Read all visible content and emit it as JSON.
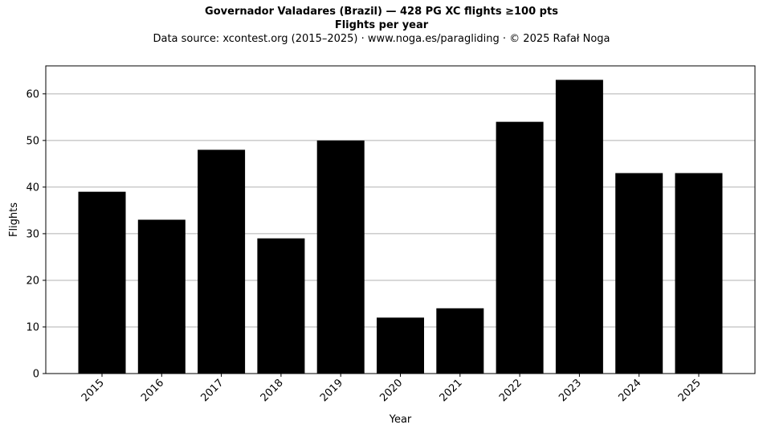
{
  "header": {
    "title": "Governador Valadares (Brazil)  —  428 PG XC flights ≥100 pts",
    "subtitle": "Flights per year",
    "source": "Data source: xcontest.org (2015–2025)  ·  www.noga.es/paragliding  ·  © 2025 Rafał Noga"
  },
  "chart_data": {
    "type": "bar",
    "title": "Governador Valadares (Brazil)  —  428 PG XC flights ≥100 pts",
    "subtitle": "Flights per year",
    "xlabel": "Year",
    "ylabel": "Flights",
    "categories": [
      "2015",
      "2016",
      "2017",
      "2018",
      "2019",
      "2020",
      "2021",
      "2022",
      "2023",
      "2024",
      "2025"
    ],
    "values": [
      39,
      33,
      48,
      29,
      50,
      12,
      14,
      54,
      63,
      43,
      43
    ],
    "ylim": [
      0,
      66
    ],
    "yticks": [
      0,
      10,
      20,
      30,
      40,
      50,
      60
    ],
    "grid": "y",
    "bar_color": "#000000",
    "grid_color": "#b0b0b0"
  }
}
